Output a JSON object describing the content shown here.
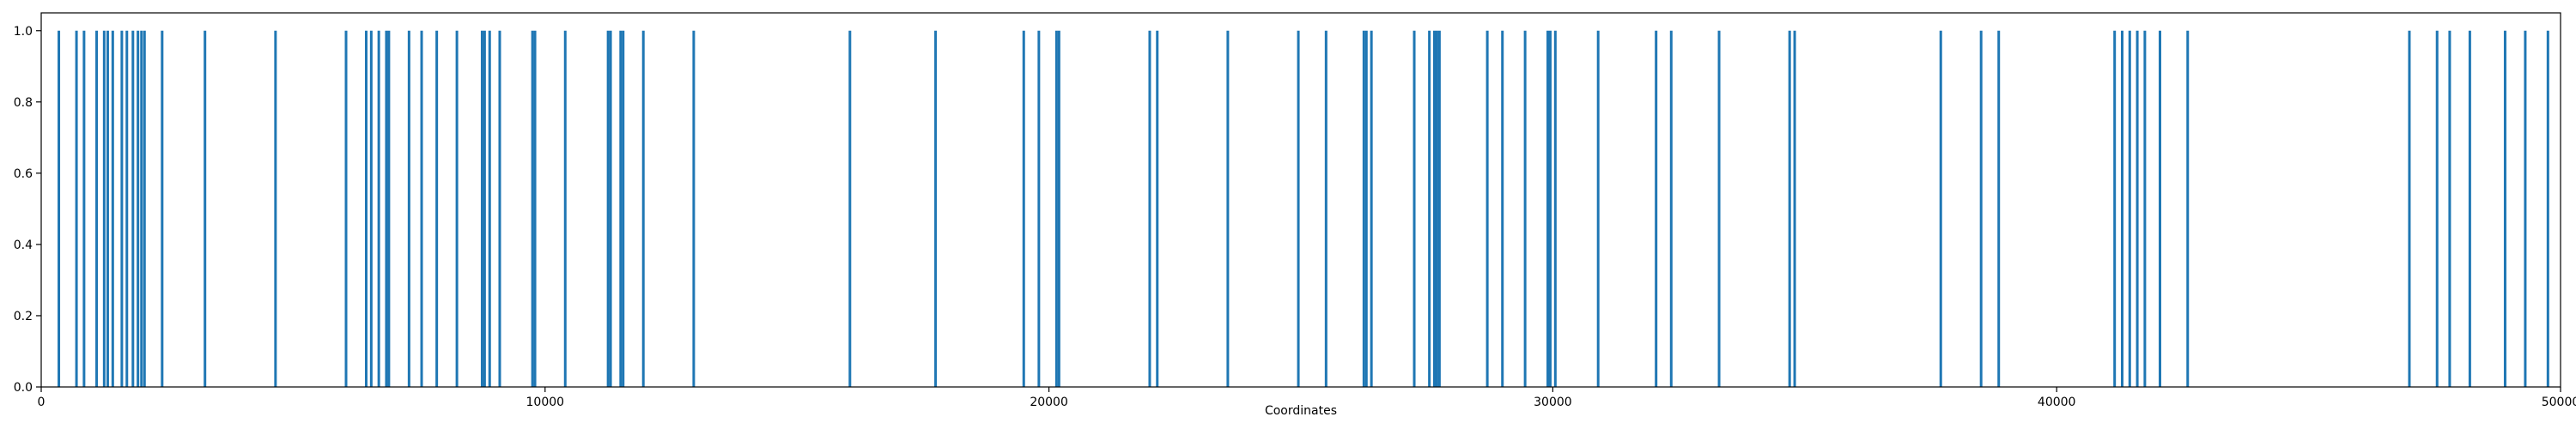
{
  "chart_data": {
    "type": "bar",
    "title": "",
    "xlabel": "Coordinates",
    "ylabel": "",
    "xlim": [
      0,
      50000
    ],
    "ylim": [
      0.0,
      1.05
    ],
    "grid": false,
    "legend": "none",
    "x_ticks": [
      0,
      10000,
      20000,
      30000,
      40000,
      50000
    ],
    "x_tick_labels": [
      "0",
      "10000",
      "20000",
      "30000",
      "40000",
      "50000"
    ],
    "y_ticks": [
      0.0,
      0.2,
      0.4,
      0.6,
      0.8,
      1.0
    ],
    "y_tick_labels": [
      "0.0",
      "0.2",
      "0.4",
      "0.6",
      "0.8",
      "1.0"
    ],
    "colors": {
      "bar": "#1f77b4",
      "axes": "#000000"
    },
    "series": [
      {
        "values_height": 1.0,
        "x": [
          350,
          700,
          850,
          1100,
          1250,
          1320,
          1420,
          1600,
          1700,
          1820,
          1920,
          1990,
          2050,
          2400,
          3250,
          4650,
          6050,
          6450,
          6550,
          6700,
          6850,
          6900,
          7300,
          7550,
          7850,
          8250,
          8750,
          8800,
          8900,
          9100,
          9750,
          9800,
          10400,
          11250,
          11300,
          11500,
          11550,
          11950,
          12950,
          16050,
          17750,
          19500,
          19800,
          20150,
          20200,
          22000,
          22150,
          23550,
          24950,
          25500,
          26250,
          26300,
          26400,
          27250,
          27550,
          27650,
          27700,
          27750,
          28700,
          29000,
          29450,
          29900,
          29950,
          30050,
          30900,
          32050,
          32350,
          33300,
          34700,
          34800,
          37700,
          38500,
          38850,
          41150,
          41300,
          41450,
          41600,
          41750,
          42050,
          42600,
          47000,
          47550,
          47800,
          48200,
          48900,
          49300,
          49750
        ]
      }
    ]
  }
}
